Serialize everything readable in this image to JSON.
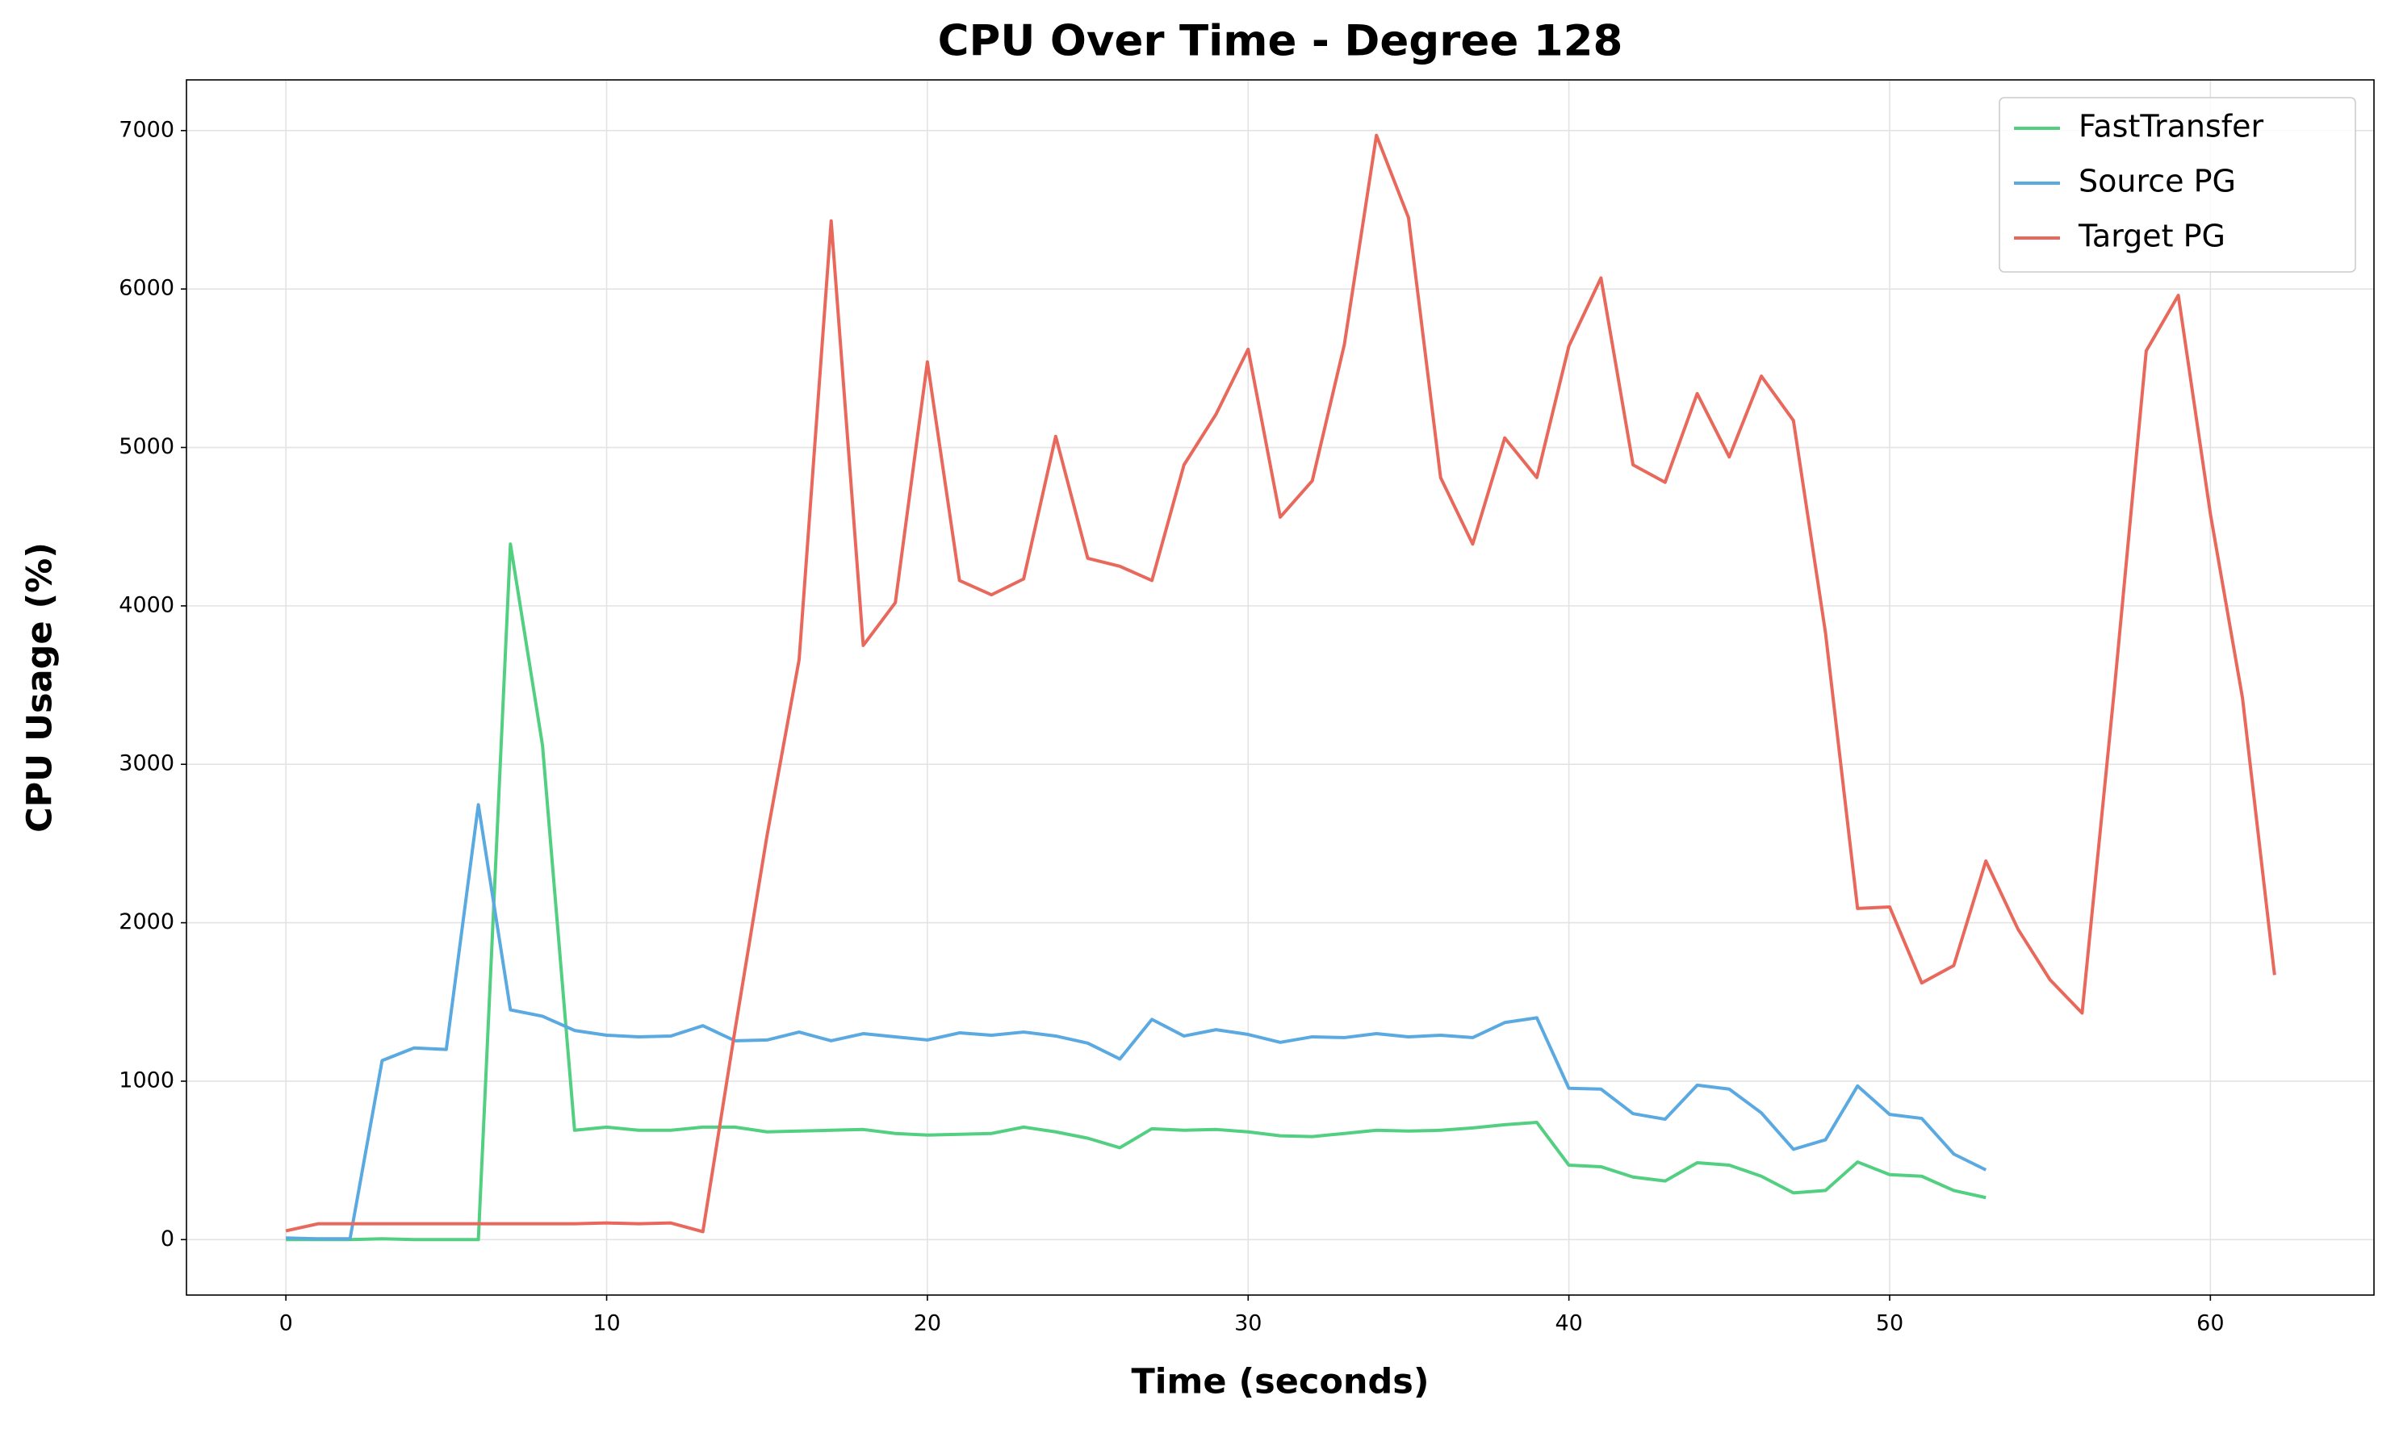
{
  "chart_data": {
    "type": "line",
    "title": "CPU Over Time - Degree 128",
    "x_label": "Time (seconds)",
    "y_label": "CPU Usage (%)",
    "x": [
      0,
      1,
      2,
      3,
      4,
      5,
      6,
      7,
      8,
      9,
      10,
      11,
      12,
      13,
      14,
      15,
      16,
      17,
      18,
      19,
      20,
      21,
      22,
      23,
      24,
      25,
      26,
      27,
      28,
      29,
      30,
      31,
      32,
      33,
      34,
      35,
      36,
      37,
      38,
      39,
      40,
      41,
      42,
      43,
      44,
      45,
      46,
      47,
      48,
      49,
      50,
      51,
      52,
      53,
      54,
      55,
      56,
      57,
      58,
      59,
      60,
      61,
      62
    ],
    "series": [
      {
        "name": "FastTransfer",
        "color": "#52cf80",
        "values": [
          0,
          0,
          0,
          5,
          0,
          0,
          0,
          4390,
          3120,
          690,
          710,
          690,
          690,
          710,
          710,
          680,
          685,
          690,
          695,
          670,
          660,
          665,
          670,
          710,
          680,
          640,
          580,
          700,
          690,
          695,
          680,
          655,
          650,
          670,
          690,
          685,
          690,
          705,
          725,
          740,
          470,
          460,
          395,
          370,
          485,
          470,
          400,
          295,
          310,
          490,
          410,
          400,
          310,
          265,
          null,
          null,
          null,
          null,
          null,
          null,
          null,
          null,
          null
        ]
      },
      {
        "name": "Source PG",
        "color": "#5aa9e0",
        "values": [
          10,
          5,
          5,
          1130,
          1210,
          1200,
          2745,
          1450,
          1410,
          1320,
          1290,
          1280,
          1285,
          1350,
          1255,
          1260,
          1310,
          1255,
          1300,
          1280,
          1260,
          1305,
          1290,
          1310,
          1285,
          1240,
          1140,
          1390,
          1285,
          1325,
          1295,
          1245,
          1280,
          1275,
          1300,
          1280,
          1290,
          1275,
          1370,
          1400,
          955,
          950,
          795,
          760,
          975,
          950,
          800,
          570,
          630,
          970,
          790,
          765,
          540,
          440,
          null,
          null,
          null,
          null,
          null,
          null,
          null,
          null,
          null
        ]
      },
      {
        "name": "Target PG",
        "color": "#e8695c",
        "values": [
          55,
          100,
          100,
          100,
          100,
          100,
          100,
          100,
          100,
          100,
          105,
          100,
          105,
          50,
          1320,
          2550,
          3660,
          6430,
          3750,
          4020,
          5540,
          4160,
          4070,
          4170,
          5070,
          4300,
          4250,
          4160,
          4890,
          5210,
          5620,
          4560,
          4790,
          5650,
          6970,
          6450,
          4810,
          4390,
          5060,
          4810,
          5640,
          6070,
          4890,
          4780,
          5340,
          4940,
          5450,
          5170,
          3830,
          2090,
          2100,
          1620,
          1730,
          2390,
          1960,
          1640,
          1430,
          3460,
          5610,
          5960,
          4580,
          3420,
          1670
        ]
      }
    ],
    "xlim": [
      -3.1,
      65.1
    ],
    "ylim": [
      -350,
      7320
    ],
    "xticks": [
      0,
      10,
      20,
      30,
      40,
      50,
      60
    ],
    "yticks": [
      0,
      1000,
      2000,
      3000,
      4000,
      5000,
      6000,
      7000
    ],
    "grid": true,
    "legend": "upper right"
  }
}
